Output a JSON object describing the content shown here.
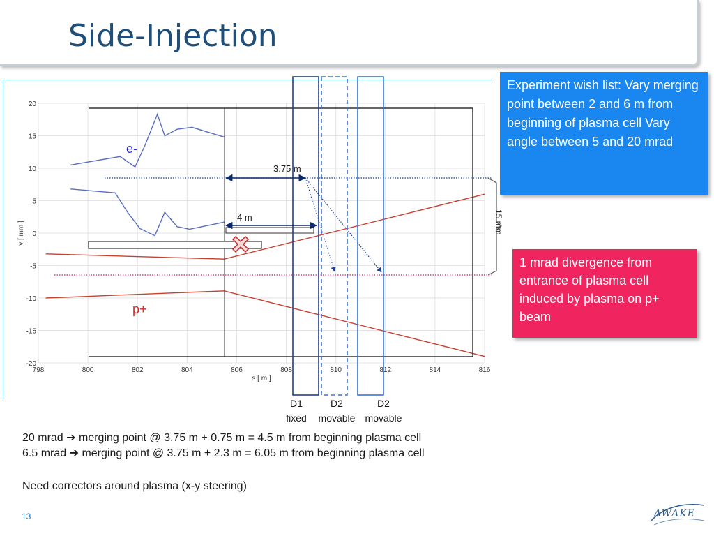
{
  "slide": {
    "title": "Side-Injection",
    "page_number": "13",
    "logo_text": "AWAKE"
  },
  "notes": {
    "wish_list": "Experiment wish list: Vary merging point between 2 and 6 m from beginning of plasma cell Vary angle between 5 and 20 mrad",
    "divergence": "1 mrad divergence from entrance of plasma cell induced by plasma on p+ beam"
  },
  "annotations": {
    "dist_375": "3.75 m",
    "dist_4": "4 m",
    "gap_15mm": "15 mm",
    "e_beam": "e-",
    "p_beam": "p+"
  },
  "detectors": [
    {
      "name": "D1",
      "type": "fixed"
    },
    {
      "name": "D2",
      "type": "movable"
    },
    {
      "name": "D2",
      "type": "movable"
    }
  ],
  "body_lines": [
    "20 mrad ➔ merging point @ 3.75 m + 0.75 m = 4.5 m from beginning plasma cell",
    "6.5 mrad  ➔ merging point @ 3.75 m + 2.3 m = 6.05 m from beginning plasma cell",
    "Need correctors around plasma (x-y steering)"
  ],
  "chart_data": {
    "type": "line",
    "xlabel": "s [ m ]",
    "ylabel": "y [ mm ]",
    "xlim": [
      798,
      816
    ],
    "ylim": [
      -20,
      20
    ],
    "xticks": [
      798,
      800,
      802,
      804,
      806,
      808,
      810,
      812,
      814,
      816
    ],
    "yticks": [
      20,
      15,
      10,
      5,
      0,
      -5,
      -10,
      -15,
      -20
    ],
    "grid": true,
    "series": [
      {
        "name": "e-",
        "color": "#5a6fc0",
        "x": [
          799.3,
          801.3,
          801.9,
          802.3,
          802.8,
          803.1,
          803.6,
          804.2,
          805.5
        ],
        "y": [
          10.5,
          11.8,
          10.2,
          13.5,
          18.3,
          15.0,
          16.0,
          16.3,
          14.8
        ]
      },
      {
        "name": "e-",
        "color": "#5a6fc0",
        "x": [
          799.3,
          801.1,
          801.6,
          802.1,
          802.7,
          803.1,
          803.6,
          804.1,
          805.5
        ],
        "y": [
          6.8,
          6.2,
          3.2,
          0.7,
          -0.4,
          3.2,
          1.0,
          0.6,
          1.7
        ]
      },
      {
        "name": "p+",
        "color": "#c84030",
        "x": [
          798.3,
          805.5,
          816
        ],
        "y": [
          -3.2,
          -4.0,
          6.0
        ]
      },
      {
        "name": "p+",
        "color": "#c84030",
        "x": [
          798.3,
          805.5,
          816
        ],
        "y": [
          -10.0,
          -8.9,
          -19.0
        ]
      }
    ]
  }
}
